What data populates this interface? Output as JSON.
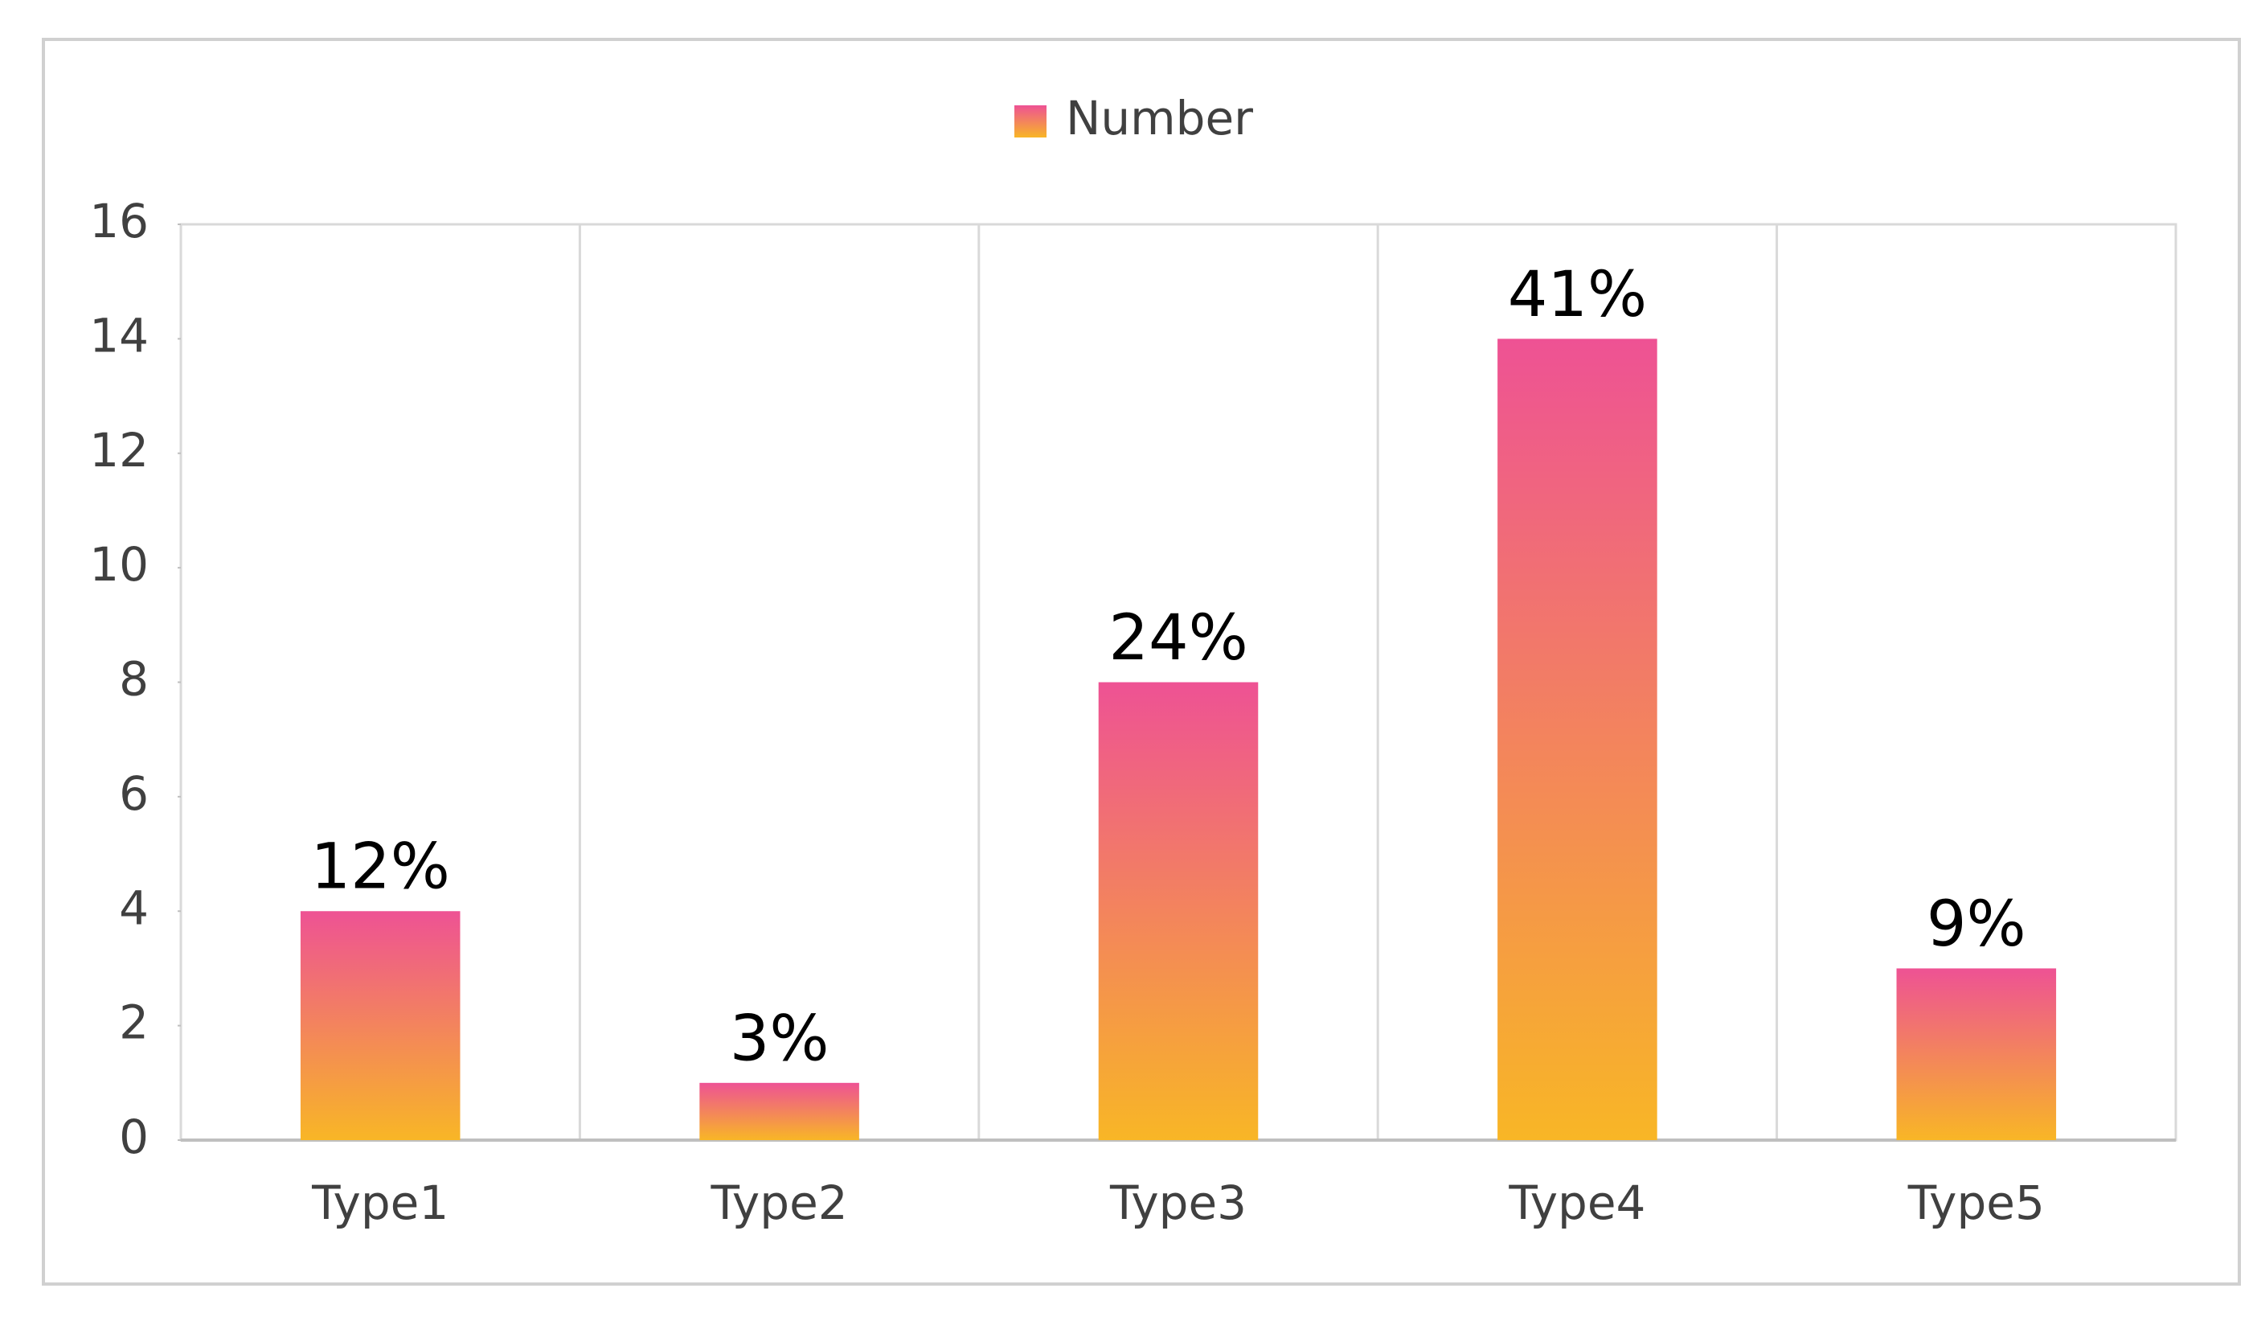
{
  "chart_data": {
    "type": "bar",
    "categories": [
      "Type1",
      "Type2",
      "Type3",
      "Type4",
      "Type5"
    ],
    "series": [
      {
        "name": "Number",
        "color": [
          "#ee5294",
          "#f8b626"
        ],
        "values": [
          4,
          1,
          8,
          14,
          3
        ]
      }
    ],
    "share_labels": [
      "12%",
      "3%",
      "24%",
      "41%",
      "9%"
    ],
    "ylim": [
      0,
      16
    ],
    "yticks": [
      0,
      2,
      4,
      6,
      8,
      10,
      12,
      14,
      16
    ],
    "category_grid": true,
    "legend": "top"
  }
}
